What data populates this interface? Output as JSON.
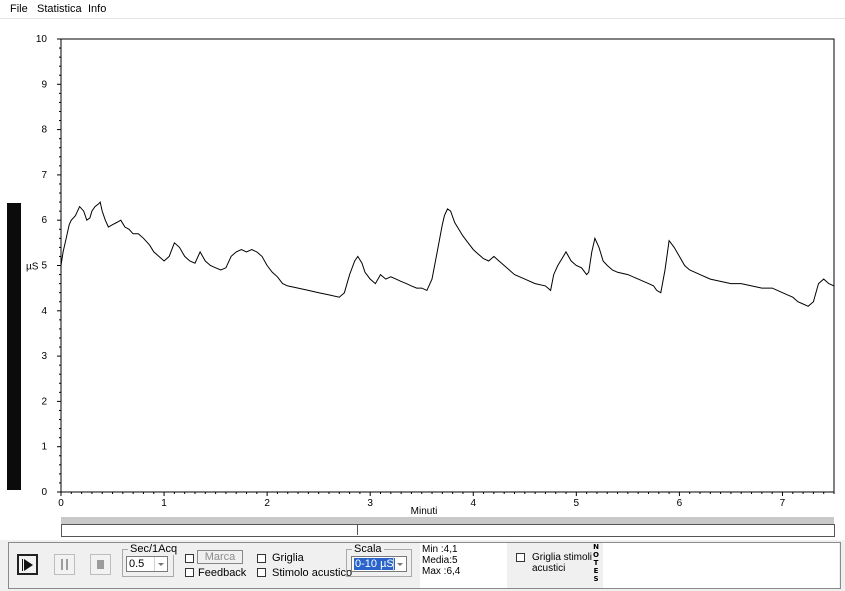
{
  "menu": {
    "items": [
      "File",
      "Statistica",
      "Info"
    ]
  },
  "chart_data": {
    "type": "line",
    "ylabel": "µS",
    "xlabel": "Minuti",
    "ylim": [
      0,
      10
    ],
    "xlim": [
      0,
      7.5
    ],
    "yticks": [
      "0",
      "1",
      "2",
      "3",
      "4",
      "5",
      "6",
      "7",
      "8",
      "9",
      "10"
    ],
    "xticks": [
      "0",
      "1",
      "2",
      "3",
      "4",
      "5",
      "6",
      "7"
    ],
    "grid": false,
    "series": [
      {
        "color": "#000000",
        "x": [
          0,
          0.02,
          0.05,
          0.08,
          0.1,
          0.14,
          0.18,
          0.22,
          0.25,
          0.28,
          0.3,
          0.33,
          0.36,
          0.38,
          0.4,
          0.43,
          0.46,
          0.5,
          0.54,
          0.58,
          0.62,
          0.66,
          0.7,
          0.75,
          0.8,
          0.86,
          0.9,
          0.95,
          1.0,
          1.05,
          1.1,
          1.15,
          1.2,
          1.25,
          1.3,
          1.35,
          1.4,
          1.45,
          1.5,
          1.55,
          1.6,
          1.65,
          1.7,
          1.75,
          1.8,
          1.85,
          1.9,
          1.95,
          2.0,
          2.05,
          2.1,
          2.15,
          2.2,
          2.3,
          2.4,
          2.5,
          2.6,
          2.7,
          2.75,
          2.8,
          2.85,
          2.88,
          2.92,
          2.95,
          3.0,
          3.05,
          3.1,
          3.15,
          3.2,
          3.25,
          3.3,
          3.35,
          3.4,
          3.45,
          3.5,
          3.55,
          3.6,
          3.65,
          3.7,
          3.72,
          3.75,
          3.78,
          3.82,
          3.86,
          3.9,
          3.95,
          4.0,
          4.05,
          4.1,
          4.15,
          4.2,
          4.25,
          4.3,
          4.35,
          4.4,
          4.5,
          4.6,
          4.7,
          4.75,
          4.78,
          4.82,
          4.86,
          4.9,
          4.95,
          5.0,
          5.05,
          5.1,
          5.12,
          5.15,
          5.18,
          5.22,
          5.26,
          5.3,
          5.35,
          5.4,
          5.5,
          5.6,
          5.7,
          5.75,
          5.78,
          5.82,
          5.86,
          5.9,
          5.95,
          6.0,
          6.05,
          6.1,
          6.2,
          6.3,
          6.4,
          6.5,
          6.6,
          6.7,
          6.8,
          6.9,
          7.0,
          7.05,
          7.1,
          7.15,
          7.2,
          7.25,
          7.3,
          7.35,
          7.4,
          7.45,
          7.5
        ],
        "values": [
          5.0,
          5.3,
          5.6,
          5.9,
          6.0,
          6.1,
          6.3,
          6.2,
          6.0,
          6.05,
          6.2,
          6.3,
          6.35,
          6.4,
          6.2,
          6.0,
          5.85,
          5.9,
          5.95,
          6.0,
          5.85,
          5.8,
          5.7,
          5.7,
          5.6,
          5.45,
          5.3,
          5.2,
          5.1,
          5.2,
          5.5,
          5.4,
          5.2,
          5.1,
          5.05,
          5.3,
          5.1,
          5.0,
          4.95,
          4.9,
          4.95,
          5.2,
          5.3,
          5.35,
          5.3,
          5.35,
          5.3,
          5.2,
          5.0,
          4.85,
          4.75,
          4.6,
          4.55,
          4.5,
          4.45,
          4.4,
          4.35,
          4.3,
          4.4,
          4.8,
          5.1,
          5.2,
          5.05,
          4.85,
          4.7,
          4.6,
          4.8,
          4.7,
          4.75,
          4.7,
          4.65,
          4.6,
          4.55,
          4.5,
          4.5,
          4.45,
          4.7,
          5.3,
          5.9,
          6.1,
          6.25,
          6.2,
          5.95,
          5.8,
          5.65,
          5.5,
          5.35,
          5.25,
          5.15,
          5.1,
          5.2,
          5.1,
          5.0,
          4.9,
          4.8,
          4.7,
          4.6,
          4.55,
          4.45,
          4.8,
          5.0,
          5.15,
          5.3,
          5.1,
          5.0,
          4.95,
          4.8,
          4.85,
          5.3,
          5.6,
          5.4,
          5.1,
          5.0,
          4.9,
          4.85,
          4.8,
          4.7,
          4.6,
          4.55,
          4.45,
          4.4,
          4.9,
          5.55,
          5.4,
          5.2,
          5.0,
          4.9,
          4.8,
          4.7,
          4.65,
          4.6,
          4.6,
          4.55,
          4.5,
          4.5,
          4.4,
          4.35,
          4.3,
          4.2,
          4.15,
          4.1,
          4.2,
          4.6,
          4.7,
          4.6,
          4.55
        ]
      }
    ]
  },
  "controls": {
    "sec_label": "Sec/1Acq",
    "sec_value": "0.5",
    "marca_label": "Marca",
    "feedback_label": "Feedback",
    "griglia_label": "Griglia",
    "stimolo_label": "Stimolo acustico",
    "scala_label": "Scala",
    "scala_value": "0-10 µS"
  },
  "stats": {
    "min": "Min   :4,1",
    "media": "Media:5",
    "max": "Max   :6,4"
  },
  "griglia_stimoli_label": "Griglia stimoli",
  "griglia_stimoli_label2": "acustici",
  "notes_letters": [
    "N",
    "O",
    "T",
    "E",
    "S"
  ]
}
